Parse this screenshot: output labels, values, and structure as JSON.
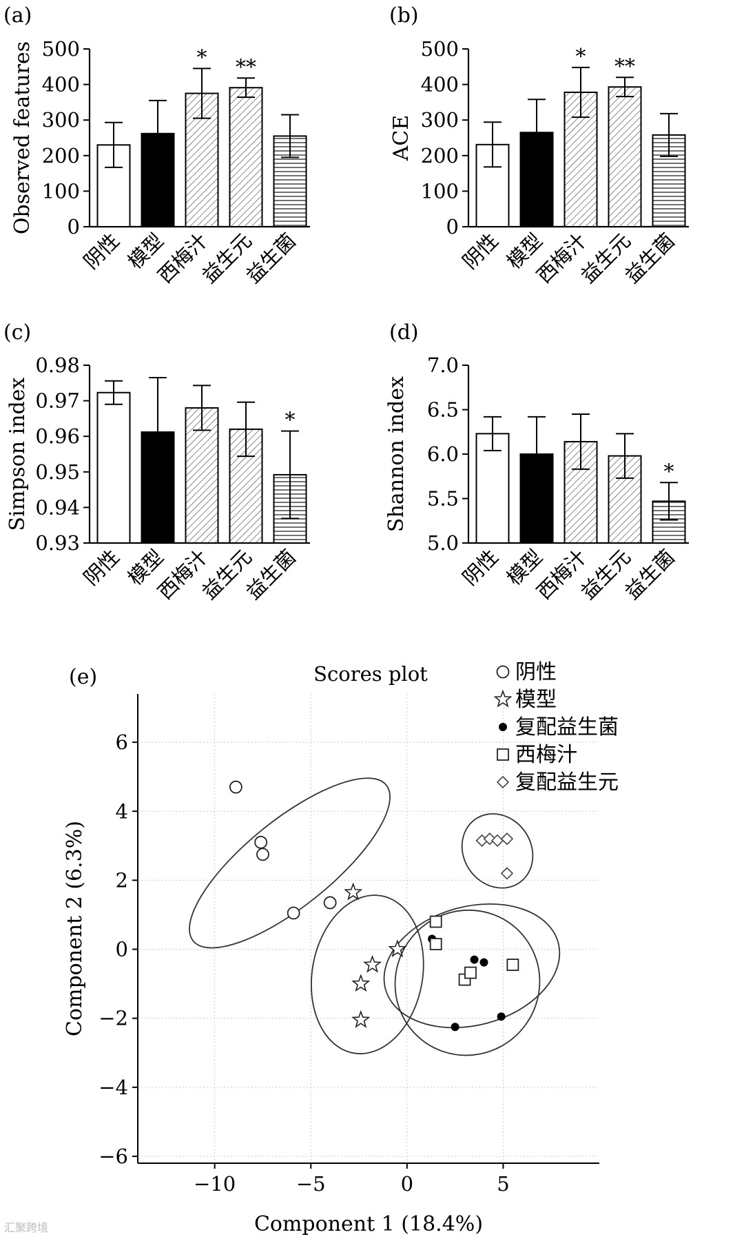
{
  "figure": {
    "watermark": "汇聚跨境"
  },
  "chart_data": [
    {
      "type": "bar",
      "panel": "(a)",
      "ylabel": "Observed features",
      "ylim": [
        0,
        500
      ],
      "yticks": [
        0,
        100,
        200,
        300,
        400,
        500
      ],
      "categories": [
        "阴性",
        "模型",
        "西梅汁",
        "益生元",
        "益生菌"
      ],
      "values": [
        230,
        262,
        375,
        391,
        255
      ],
      "errors": [
        63,
        93,
        70,
        27,
        60
      ],
      "fills": [
        "white",
        "black",
        "diag",
        "diag",
        "hlines"
      ],
      "significance": [
        "",
        "",
        "*",
        "**",
        ""
      ]
    },
    {
      "type": "bar",
      "panel": "(b)",
      "ylabel": "ACE",
      "ylim": [
        0,
        500
      ],
      "yticks": [
        0,
        100,
        200,
        300,
        400,
        500
      ],
      "categories": [
        "阴性",
        "模型",
        "西梅汁",
        "益生元",
        "益生菌"
      ],
      "values": [
        231,
        265,
        378,
        393,
        258
      ],
      "errors": [
        63,
        93,
        70,
        27,
        60
      ],
      "fills": [
        "white",
        "black",
        "diag",
        "diag",
        "hlines"
      ],
      "significance": [
        "",
        "",
        "*",
        "**",
        ""
      ]
    },
    {
      "type": "bar",
      "panel": "(c)",
      "ylabel": "Simpson index",
      "ylim": [
        0.93,
        0.98
      ],
      "yticks": [
        0.93,
        0.94,
        0.95,
        0.96,
        0.97,
        0.98
      ],
      "ytick_labels": [
        "0.93",
        "0.94",
        "0.95",
        "0.96",
        "0.97",
        "0.98"
      ],
      "categories": [
        "阴性",
        "模型",
        "西梅汁",
        "益生元",
        "益生菌"
      ],
      "values": [
        0.9723,
        0.9612,
        0.968,
        0.962,
        0.9492
      ],
      "errors": [
        0.0033,
        0.0153,
        0.0063,
        0.0076,
        0.0123
      ],
      "fills": [
        "white",
        "black",
        "diag",
        "diag",
        "hlines"
      ],
      "significance": [
        "",
        "",
        "",
        "",
        "*"
      ]
    },
    {
      "type": "bar",
      "panel": "(d)",
      "ylabel": "Shannon index",
      "ylim": [
        5.0,
        7.0
      ],
      "yticks": [
        5.0,
        5.5,
        6.0,
        6.5,
        7.0
      ],
      "ytick_labels": [
        "5.0",
        "5.5",
        "6.0",
        "6.5",
        "7.0"
      ],
      "categories": [
        "阴性",
        "模型",
        "西梅汁",
        "益生元",
        "益生菌"
      ],
      "values": [
        6.23,
        6.0,
        6.14,
        5.98,
        5.47
      ],
      "errors": [
        0.19,
        0.42,
        0.31,
        0.25,
        0.21
      ],
      "fills": [
        "white",
        "black",
        "diag",
        "diag",
        "hlines"
      ],
      "significance": [
        "",
        "",
        "",
        "",
        "*"
      ]
    },
    {
      "type": "scatter",
      "panel": "(e)",
      "title": "Scores plot",
      "xlabel": "Component 1 (18.4%)",
      "ylabel": "Component 2 (6.3%)",
      "xlim": [
        -14,
        10
      ],
      "ylim": [
        -6.2,
        7.4
      ],
      "xticks": [
        -10,
        -5,
        0,
        5
      ],
      "xtick_labels": [
        "−10",
        "−5",
        "0",
        "5"
      ],
      "yticks": [
        -6,
        -4,
        -2,
        0,
        2,
        4,
        6
      ],
      "ytick_labels": [
        "−6",
        "−4",
        "−2",
        "0",
        "2",
        "4",
        "6"
      ],
      "series": [
        {
          "name": "阴性",
          "marker": "circle",
          "points": [
            [
              -8.9,
              4.7
            ],
            [
              -7.6,
              3.1
            ],
            [
              -7.5,
              2.75
            ],
            [
              -5.9,
              1.05
            ],
            [
              -4.0,
              1.35
            ]
          ],
          "ellipse": {
            "cx": -6.1,
            "cy": 2.5,
            "rx": 6.45,
            "ry": 1.25,
            "angle_deg": -38.9
          }
        },
        {
          "name": "模型",
          "marker": "star",
          "points": [
            [
              -2.8,
              1.65
            ],
            [
              -2.4,
              -1.0
            ],
            [
              -1.8,
              -0.45
            ],
            [
              -2.4,
              -2.05
            ],
            [
              -0.5,
              0.0
            ]
          ],
          "ellipse": {
            "cx": -2.06,
            "cy": -0.73,
            "rx": 4.15,
            "ry": 1.6,
            "angle_deg": -80
          }
        },
        {
          "name": "复配益生菌",
          "marker": "filled-circle",
          "points": [
            [
              1.3,
              0.3
            ],
            [
              3.5,
              -0.3
            ],
            [
              4.0,
              -0.38
            ],
            [
              2.5,
              -2.25
            ],
            [
              4.9,
              -1.95
            ]
          ],
          "ellipse": {
            "cx": 3.14,
            "cy": -0.97,
            "rx": 3.8,
            "ry": 2.08,
            "angle_deg": -50
          }
        },
        {
          "name": "西梅汁",
          "marker": "square",
          "points": [
            [
              1.5,
              0.8
            ],
            [
              1.5,
              0.15
            ],
            [
              3.0,
              -0.88
            ],
            [
              3.3,
              -0.68
            ],
            [
              5.5,
              -0.45
            ]
          ],
          "ellipse": {
            "cx": 3.37,
            "cy": -0.48,
            "rx": 4.65,
            "ry": 1.72,
            "angle_deg": -15
          }
        },
        {
          "name": "复配益生元",
          "marker": "diamond",
          "points": [
            [
              3.9,
              3.15
            ],
            [
              4.3,
              3.2
            ],
            [
              4.7,
              3.15
            ],
            [
              5.2,
              3.2
            ],
            [
              5.2,
              2.2
            ]
          ],
          "ellipse": {
            "cx": 4.7,
            "cy": 2.85,
            "rx": 1.75,
            "ry": 1.12,
            "angle_deg": -35
          }
        }
      ],
      "legend": [
        "阴性",
        "模型",
        "复配益生菌",
        "西梅汁",
        "复配益生元"
      ],
      "grid": true
    }
  ]
}
